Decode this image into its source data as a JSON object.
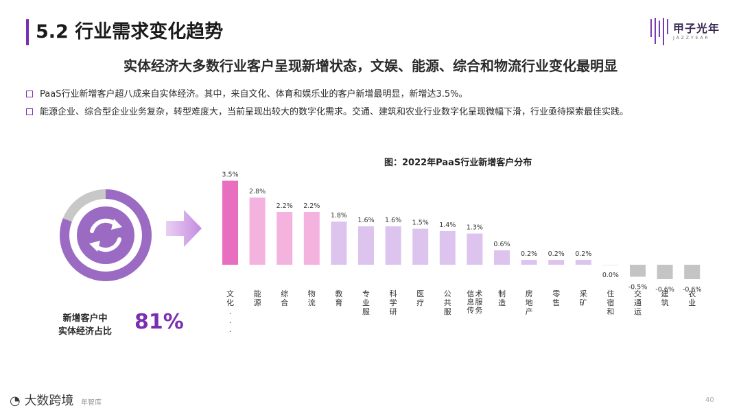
{
  "slide": {
    "section_title": "5.2 行业需求变化趋势",
    "headline": "实体经济大多数行业客户呈现新增状态，文娱、能源、综合和物流行业变化最明显",
    "bullets": [
      "PaaS行业新增客户超八成来自实体经济。其中，来自文化、体育和娱乐业的客户新增最明显，新增达3.5%。",
      "能源企业、综合型企业业务复杂，转型难度大，当前呈现出较大的数字化需求。交通、建筑和农业行业数字化呈现微幅下滑，行业亟待探索最佳实践。"
    ],
    "left_label": "新增客户中\n实体经济占比",
    "left_value": "81%",
    "ring_fraction": 0.81,
    "page_number": "40",
    "footer_brand": "大数跨境",
    "footer_source": "年智库"
  },
  "logo": {
    "name": "甲子光年",
    "sub": "JAZZYEAR"
  },
  "colors": {
    "accent": "#7a2fb0",
    "ring": "#9b6bc4",
    "ring_bg": "#c8c8c8",
    "pink_dark": "#e86fbf",
    "pink_light": "#f4b3de",
    "lavender": "#dcc4ef",
    "negative": "#c4c4c4",
    "arrow": "#d59ae6"
  },
  "chart_data": {
    "type": "bar",
    "title": "图：2022年PaaS行业新增客户分布",
    "categories": [
      "文化...",
      "能源",
      "综合",
      "物流",
      "教育",
      "专业服",
      "科学研",
      "医疗",
      "公共服",
      "信术息服传务",
      "制造",
      "房地产",
      "零售",
      "采矿",
      "住宿和",
      "交通运",
      "建筑",
      "农业"
    ],
    "values": [
      3.5,
      2.8,
      2.2,
      2.2,
      1.8,
      1.6,
      1.6,
      1.5,
      1.4,
      1.3,
      0.6,
      0.2,
      0.2,
      0.2,
      0.0,
      -0.5,
      -0.6,
      -0.6
    ],
    "labels": [
      "3.5%",
      "2.8%",
      "2.2%",
      "2.2%",
      "1.8%",
      "1.6%",
      "1.6%",
      "1.5%",
      "1.4%",
      "1.3%",
      "0.6%",
      "0.2%",
      "0.2%",
      "0.2%",
      "0.0%",
      "-0.5%",
      "-0.6%",
      "-0.6%"
    ],
    "xlabel": "",
    "ylabel": "",
    "ylim": [
      -0.6,
      3.5
    ],
    "grid": false
  }
}
